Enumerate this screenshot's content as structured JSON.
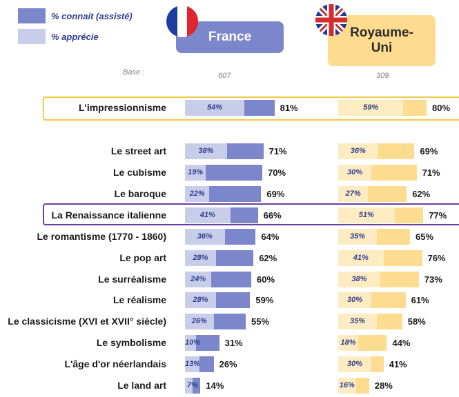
{
  "legend": {
    "known_label": "% connait (assisté)",
    "appreciate_label": "% apprécie",
    "known_color": "#7b86cb",
    "appreciate_color": "#c8cdea"
  },
  "countries": {
    "france": {
      "name": "France",
      "base": "607",
      "flag_icon": "france-flag-icon"
    },
    "uk": {
      "name": "Royaume-Uni",
      "base": "309",
      "flag_icon": "uk-flag-icon"
    }
  },
  "base_label": "Base :",
  "colors": {
    "fr_known": "#7b86cb",
    "fr_appreciate": "#c8cdea",
    "uk_known": "#fddc8f",
    "uk_appreciate": "#fdebc2",
    "highlight_impressionism": "#f6c645",
    "highlight_renaissance": "#6a3fa0"
  },
  "chart_data": {
    "type": "bar",
    "orientation": "horizontal",
    "categories": [
      "L'impressionnisme",
      "Le street art",
      "Le cubisme",
      "Le baroque",
      "La Renaissance italienne",
      "Le romantisme (1770 - 1860)",
      "Le pop art",
      "Le surréalisme",
      "Le réalisme",
      "Le classicisme (XVI et XVII° siècle)",
      "Le symbolisme",
      "L'âge d'or néerlandais",
      "Le land art"
    ],
    "highlighted": [
      "L'impressionnisme",
      "La Renaissance italienne"
    ],
    "series": [
      {
        "name": "France - % connait (assisté)",
        "values": [
          81,
          71,
          70,
          69,
          66,
          64,
          62,
          60,
          59,
          55,
          31,
          26,
          14
        ]
      },
      {
        "name": "France - % apprécie",
        "values": [
          54,
          38,
          19,
          22,
          41,
          36,
          28,
          24,
          28,
          26,
          10,
          13,
          7
        ]
      },
      {
        "name": "Royaume-Uni - % connait (assisté)",
        "values": [
          80,
          69,
          71,
          62,
          77,
          65,
          76,
          73,
          61,
          58,
          44,
          41,
          28
        ]
      },
      {
        "name": "Royaume-Uni - % apprécie",
        "values": [
          59,
          36,
          30,
          27,
          51,
          35,
          41,
          38,
          30,
          35,
          18,
          30,
          16
        ]
      }
    ],
    "value_suffix": "%",
    "xlim": [
      0,
      100
    ]
  }
}
